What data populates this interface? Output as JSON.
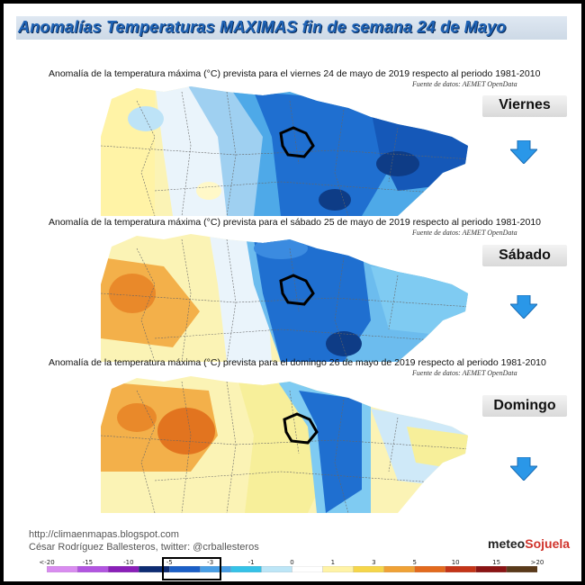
{
  "header": {
    "title": "Anomalías Temperaturas MAXIMAS fin de semana 24 de Mayo"
  },
  "panels": [
    {
      "title": "Anomalía de la temperatura máxima (°C) prevista para el viernes 24 de mayo de 2019 respecto al periodo 1981-2010",
      "source": "Fuente de datos: AEMET OpenData",
      "day": "Viernes"
    },
    {
      "title": "Anomalía de la temperatura máxima (°C) prevista para el sábado 25 de mayo de 2019 respecto al periodo 1981-2010",
      "source": "Fuente de datos: AEMET OpenData",
      "day": "Sábado"
    },
    {
      "title": "Anomalía de la temperatura máxima (°C) prevista para el domingo 26 de mayo de 2019 respecto al periodo 1981-2010",
      "source": "Fuente de datos: AEMET OpenData",
      "day": "Domingo"
    }
  ],
  "footer": {
    "url": "http://climaenmapas.blogspot.com",
    "author": "César Rodríguez Ballesteros, twitter: @crballesteros",
    "logo_prefix": "meteo",
    "logo_suffix": "Sojuela"
  },
  "scale": {
    "labels": [
      "<-20",
      "-15",
      "-10",
      "-5",
      "-3",
      "-1",
      "0",
      "1",
      "3",
      "5",
      "10",
      "15",
      ">20"
    ],
    "colors": [
      "#d98cf0",
      "#b255e0",
      "#8a1fb8",
      "#0d2c73",
      "#1b5fc7",
      "#4a9fe6",
      "#35c2e8",
      "#bde6f7",
      "#ffffff",
      "#fff3a6",
      "#f6d64a",
      "#f0a236",
      "#e36a1e",
      "#c43418",
      "#8a1414",
      "#5a3a1a"
    ]
  }
}
